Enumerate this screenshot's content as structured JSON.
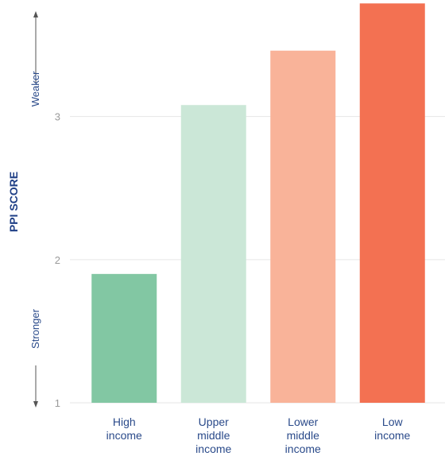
{
  "chart_data": {
    "type": "bar",
    "title": "",
    "xlabel": "",
    "ylabel": "PPI SCORE",
    "direction_labels": {
      "top": "Weaker",
      "bottom": "Stronger"
    },
    "categories": [
      [
        "High",
        "income"
      ],
      [
        "Upper",
        "middle",
        "income"
      ],
      [
        "Lower",
        "middle",
        "income"
      ],
      [
        "Low",
        "income"
      ]
    ],
    "values": [
      1.9,
      3.08,
      3.46,
      3.79
    ],
    "colors": [
      "#82c7a3",
      "#cbe7d7",
      "#f9b399",
      "#f37152"
    ],
    "ylim": [
      1,
      3.8
    ],
    "yticks": [
      1,
      2,
      3
    ],
    "grid": true,
    "grid_color": "#e6e6e6"
  }
}
